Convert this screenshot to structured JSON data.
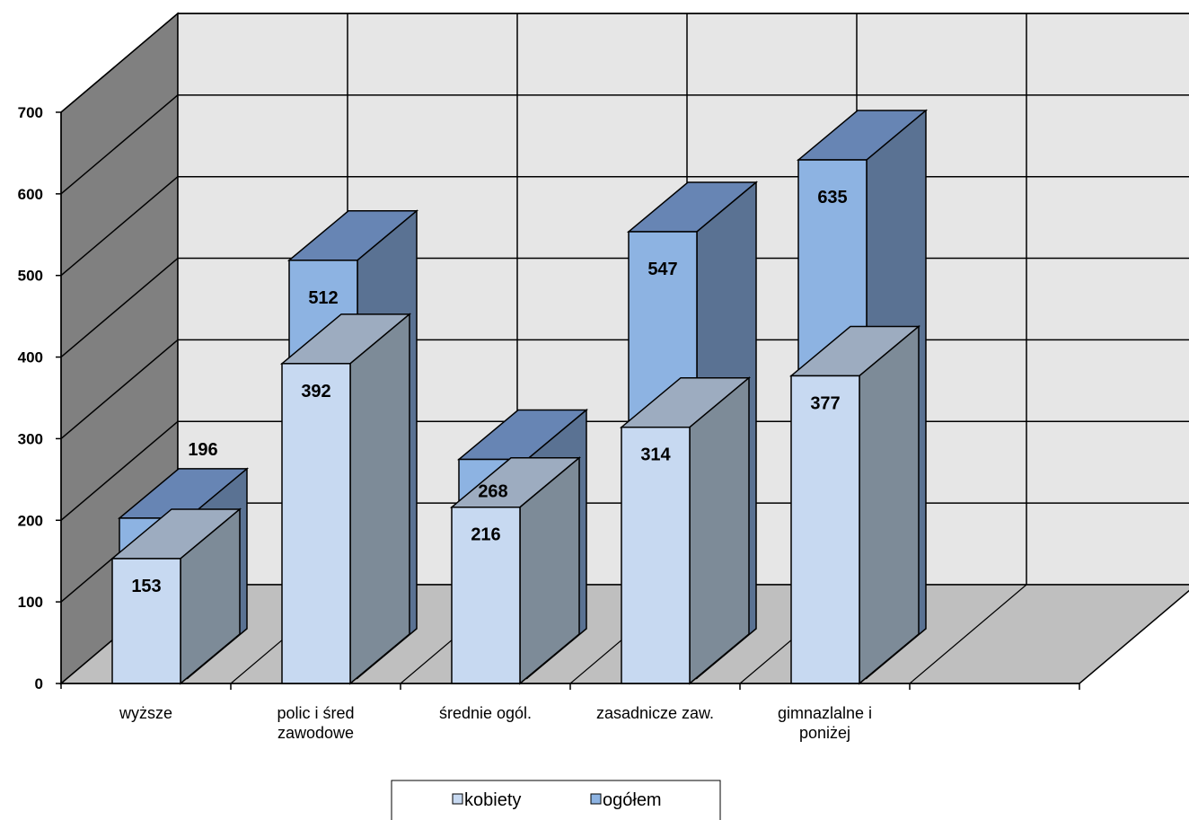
{
  "chart_data": {
    "type": "bar",
    "projection": "3d",
    "categories": [
      [
        "wyższe"
      ],
      [
        "polic i śred",
        "zawodowe"
      ],
      [
        "średnie ogól."
      ],
      [
        "zasadnicze zaw."
      ],
      [
        "gimnazlalne i",
        "poniżej"
      ]
    ],
    "series": [
      {
        "name": "kobiety",
        "values": [
          153,
          392,
          216,
          314,
          377
        ],
        "color": "#c7d9f1"
      },
      {
        "name": "ogółem",
        "values": [
          196,
          512,
          268,
          547,
          635
        ],
        "color": "#8db3e2"
      }
    ],
    "yticks": [
      0,
      100,
      200,
      300,
      400,
      500,
      600,
      700
    ],
    "ylim": [
      0,
      700
    ],
    "grid": true,
    "legend_position": "bottom"
  }
}
